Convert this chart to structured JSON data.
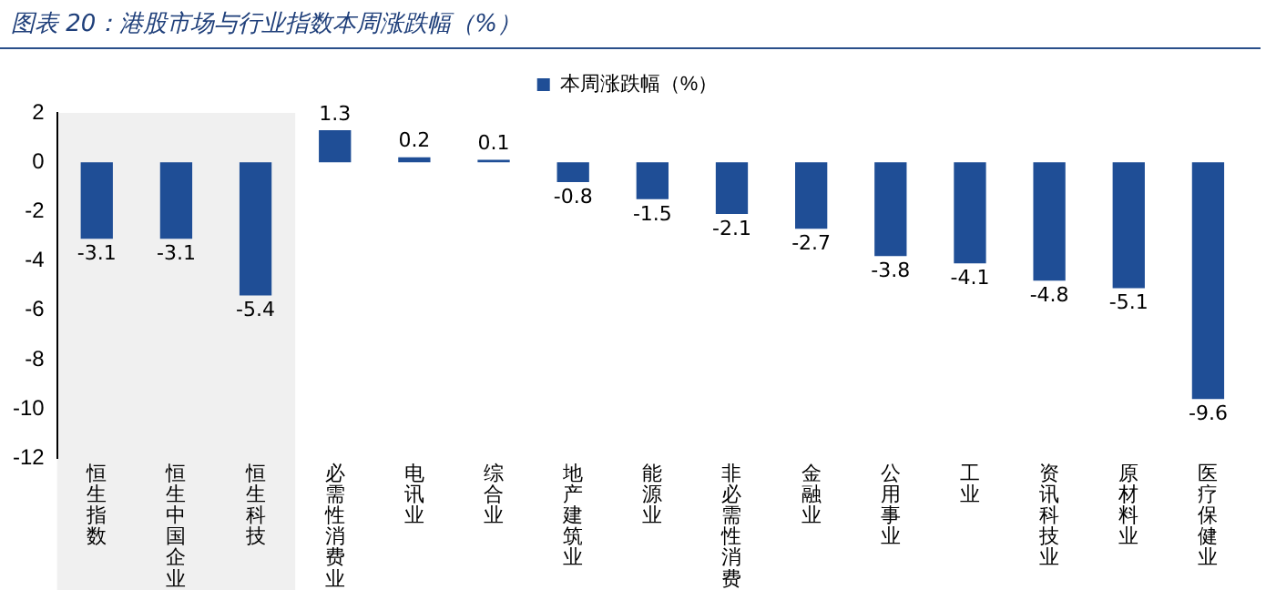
{
  "chart_data": {
    "type": "bar",
    "title": "图表 20：港股市场与行业指数本周涨跌幅（%）",
    "categories": [
      "恒生指数",
      "恒生中国企业",
      "恒生科技",
      "必需性消费业",
      "电讯业",
      "综合业",
      "地产建筑业",
      "能源业",
      "非必需性消费",
      "金融业",
      "公用事业",
      "工业",
      "资讯科技业",
      "原材料业",
      "医疗保健业"
    ],
    "series": [
      {
        "name": "本周涨跌幅（%）",
        "color": "#1f4e96",
        "values": [
          -3.1,
          -3.1,
          -5.4,
          1.3,
          0.2,
          0.1,
          -0.8,
          -1.5,
          -2.1,
          -2.7,
          -3.8,
          -4.1,
          -4.8,
          -5.1,
          -9.6
        ]
      }
    ],
    "ylim": [
      -12,
      2
    ],
    "yticks": [
      -12,
      -10,
      -8,
      -6,
      -4,
      -2,
      0,
      2
    ],
    "grid": false,
    "legend": "top",
    "data_labels": true,
    "bands": [
      {
        "axis": "x",
        "from": "恒生指数",
        "to": "恒生科技",
        "color": "#f0f0f0"
      }
    ]
  }
}
